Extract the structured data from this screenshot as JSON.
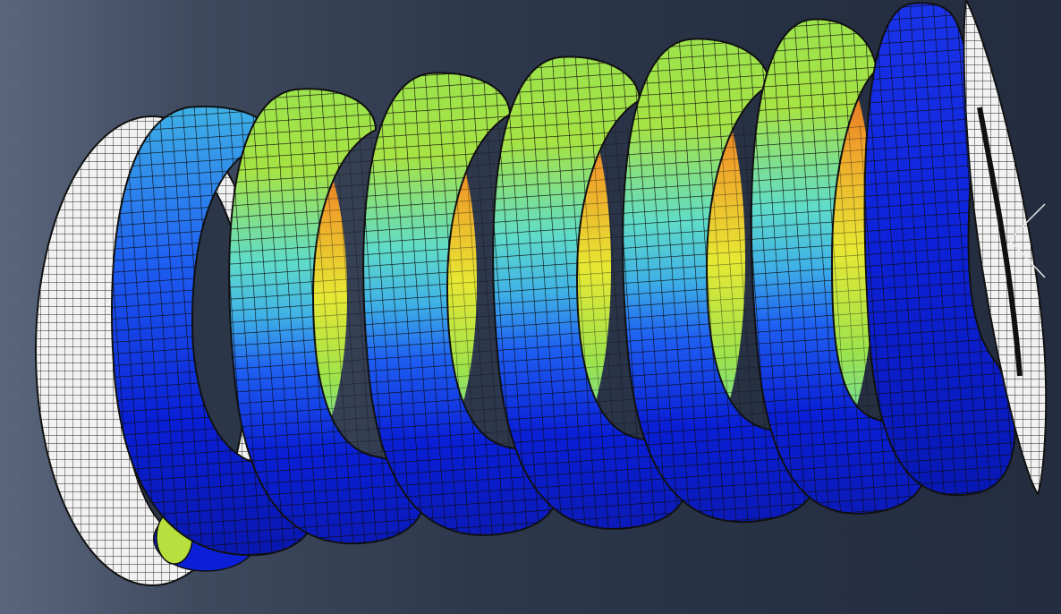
{
  "viewport": {
    "background_colors": [
      "#5a667c",
      "#2e384c",
      "#242d40"
    ]
  },
  "model": {
    "type": "helical-spring-fea-mesh",
    "active_coils": 7,
    "end_plates": 2,
    "contour_colors": [
      "#0a1fd6",
      "#1e5ef2",
      "#3fb1e6",
      "#5fdcc9",
      "#9ce34c",
      "#e7e834",
      "#f0a22a",
      "#d8481f"
    ]
  },
  "triad": {
    "icon": "view-triad-icon"
  }
}
